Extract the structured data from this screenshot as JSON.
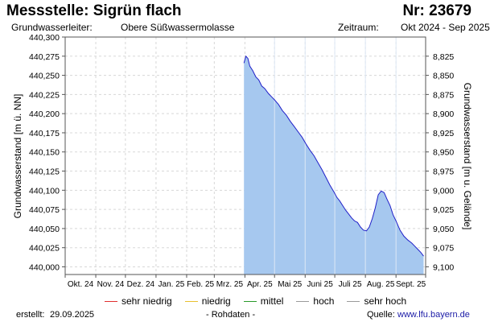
{
  "header": {
    "title": "Messstelle: Sigrün flach",
    "station_nr": "Nr: 23679",
    "aquifer_label": "Grundwasserleiter:",
    "aquifer_value": "Obere Süßwassermolasse",
    "period_label": "Zeitraum:",
    "period_value": "Okt 2024 - Sep 2025"
  },
  "chart_data": {
    "type": "area",
    "ylabel": "Grundwasserstand [m ü. NN]",
    "ylabel_right": "Grundwasserstand [m u. Gelände]",
    "ylim": [
      439.99,
      440.3
    ],
    "yticks": [
      "440,000",
      "440,025",
      "440,050",
      "440,075",
      "440,100",
      "440,125",
      "440,150",
      "440,175",
      "440,200",
      "440,225",
      "440,250",
      "440,275",
      "440,300"
    ],
    "y_right_ticks": [
      "8,825",
      "8,850",
      "8,875",
      "8,900",
      "8,925",
      "8,950",
      "8,975",
      "9,000",
      "9,025",
      "9,050",
      "9,075",
      "9,100"
    ],
    "x_months": [
      "Okt. 24",
      "Nov. 24",
      "Dez. 24",
      "Jan. 25",
      "Feb. 25",
      "Mrz. 25",
      "Apr. 25",
      "Mai 25",
      "Juni 25",
      "Juli 25",
      "Aug. 25",
      "Sept. 25"
    ],
    "grid": true,
    "series": [
      {
        "color": "#1f1fc8",
        "fill": "#a6c8ef",
        "x": [
          "2025-03-31",
          "2025-04-02",
          "2025-04-04",
          "2025-04-06",
          "2025-04-09",
          "2025-04-12",
          "2025-04-15",
          "2025-04-18",
          "2025-04-21",
          "2025-04-25",
          "2025-04-28",
          "2025-05-01",
          "2025-05-05",
          "2025-05-09",
          "2025-05-13",
          "2025-05-17",
          "2025-05-21",
          "2025-05-25",
          "2025-05-29",
          "2025-06-02",
          "2025-06-06",
          "2025-06-10",
          "2025-06-14",
          "2025-06-18",
          "2025-06-22",
          "2025-06-26",
          "2025-06-30",
          "2025-07-03",
          "2025-07-06",
          "2025-07-09",
          "2025-07-12",
          "2025-07-15",
          "2025-07-18",
          "2025-07-21",
          "2025-07-24",
          "2025-07-27",
          "2025-07-30",
          "2025-08-02",
          "2025-08-05",
          "2025-08-08",
          "2025-08-11",
          "2025-08-14",
          "2025-08-17",
          "2025-08-20",
          "2025-08-23",
          "2025-08-26",
          "2025-08-29",
          "2025-09-01",
          "2025-09-05",
          "2025-09-09",
          "2025-09-13",
          "2025-09-17",
          "2025-09-20",
          "2025-09-23",
          "2025-09-26",
          "2025-09-29"
        ],
        "y": [
          440.266,
          440.275,
          440.272,
          440.262,
          440.256,
          440.248,
          440.244,
          440.236,
          440.233,
          440.226,
          440.222,
          440.218,
          440.212,
          440.204,
          440.198,
          440.19,
          440.183,
          440.176,
          440.169,
          440.16,
          440.152,
          440.145,
          440.136,
          440.127,
          440.117,
          440.107,
          440.098,
          440.091,
          440.086,
          440.08,
          440.074,
          440.069,
          440.064,
          440.06,
          440.058,
          440.052,
          440.048,
          440.047,
          440.052,
          440.063,
          440.077,
          440.094,
          440.099,
          440.097,
          440.088,
          440.08,
          440.068,
          440.06,
          440.048,
          440.04,
          440.035,
          440.031,
          440.027,
          440.023,
          440.019,
          440.014
        ]
      }
    ]
  },
  "legend": [
    {
      "label": "sehr niedrig",
      "color": "#e03030"
    },
    {
      "label": "niedrig",
      "color": "#e8c030"
    },
    {
      "label": "mittel",
      "color": "#2a9a2a"
    },
    {
      "label": "hoch",
      "color": "#9a9a9a"
    },
    {
      "label": "sehr hoch",
      "color": "#9a9a9a"
    }
  ],
  "footer": {
    "created_label": "erstellt:",
    "created_value": "29.09.2025",
    "raw_data": "- Rohdaten -",
    "source_label": "Quelle:",
    "source_value": "www.lfu.bayern.de"
  }
}
